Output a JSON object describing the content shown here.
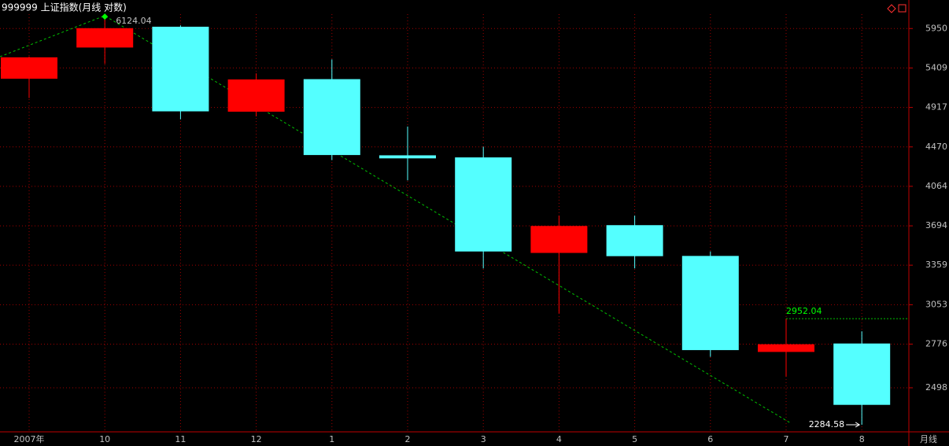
{
  "chart_data": {
    "type": "candlestick",
    "title": "999999 上证指数(月线 对数)",
    "categories": [
      "2007年",
      "10",
      "11",
      "12",
      "1",
      "2",
      "3",
      "4",
      "5",
      "6",
      "7",
      "8"
    ],
    "open": [
      5270,
      5683,
      5976,
      4867,
      5265,
      4380,
      4358,
      3460,
      3700,
      3435,
      2724,
      2780
    ],
    "high": [
      5560,
      6124.04,
      5996,
      5339,
      5522,
      4695,
      4472,
      3786,
      3786,
      3473,
      2952.04,
      2863
    ],
    "low": [
      5030,
      5462,
      4778,
      4812,
      4330,
      4123,
      3333,
      2990,
      3333,
      2692,
      2566,
      2284.58
    ],
    "close": [
      5550,
      5955,
      4871,
      5261,
      4383,
      4348,
      3472,
      3693,
      3433,
      2736,
      2775,
      2397
    ],
    "up_color": "#ff0000",
    "down_color": "#54ffff",
    "ylim": [
      2250,
      6160
    ],
    "yticks": [
      2498,
      2776,
      3053,
      3359,
      3694,
      4064,
      4470,
      4917,
      5409,
      5950
    ],
    "log_scale": true,
    "grid": true,
    "period_label": "月线"
  }
}
